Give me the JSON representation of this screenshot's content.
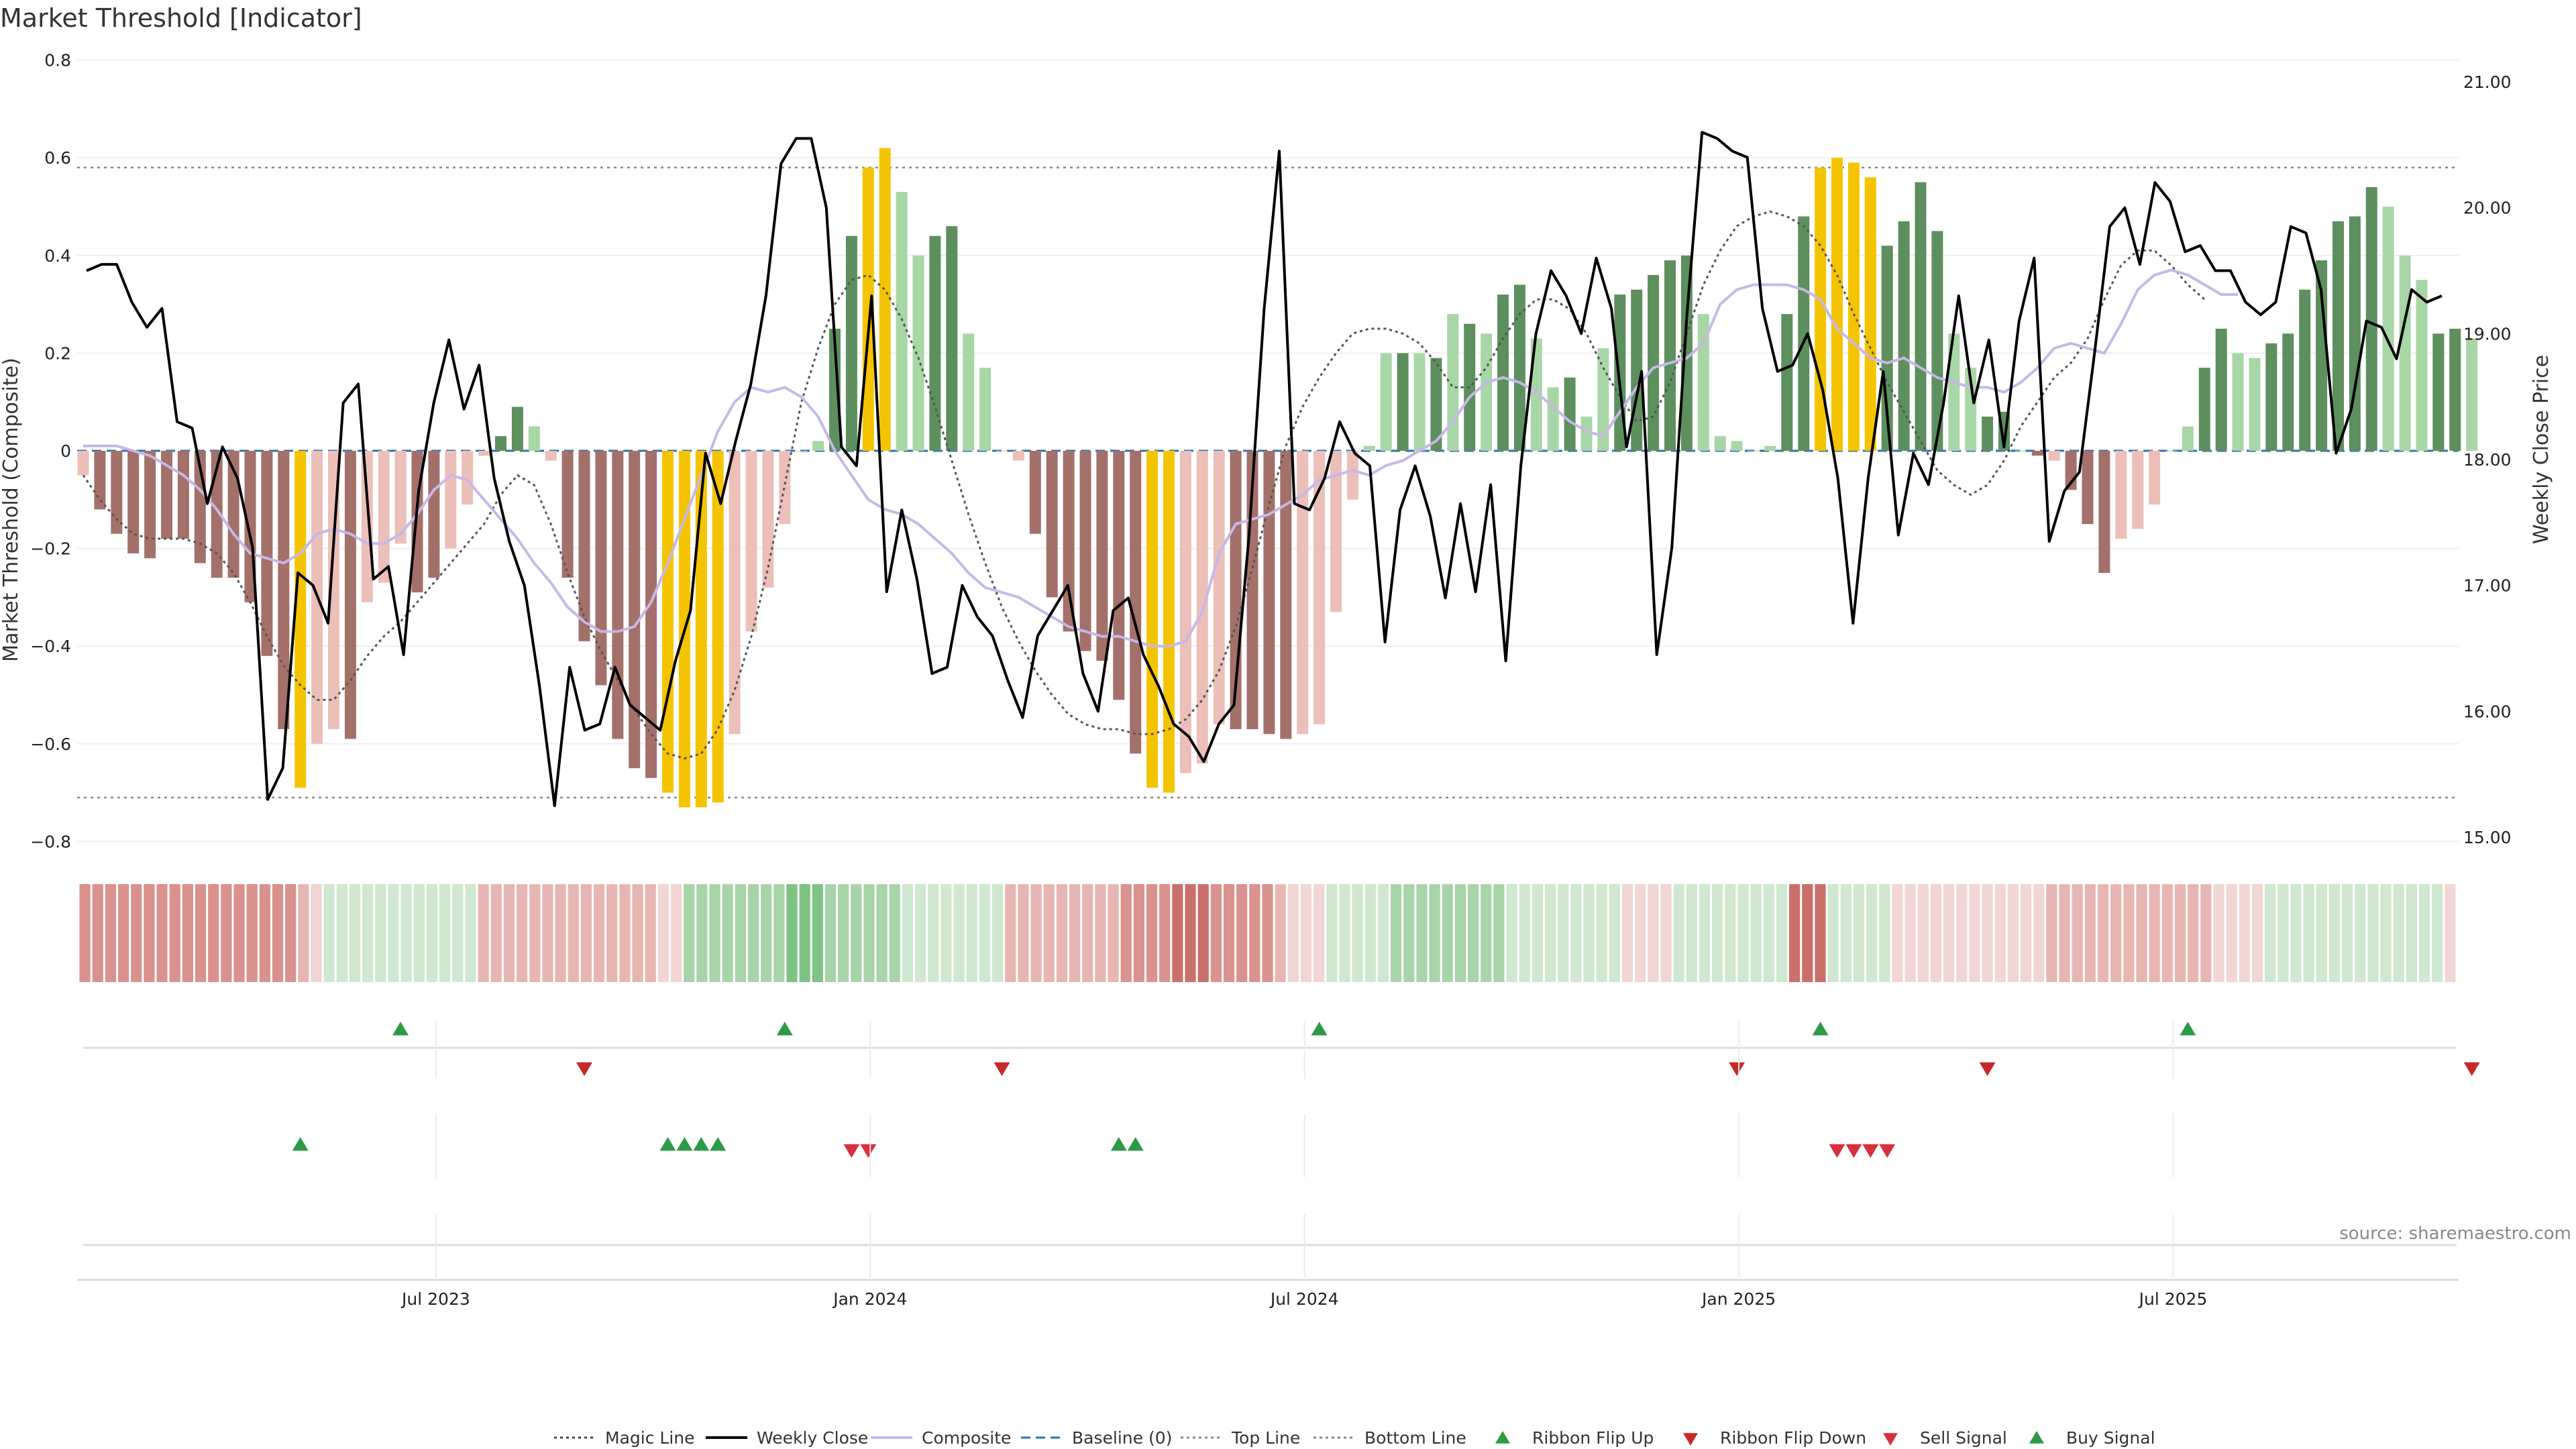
{
  "title": "Market Threshold [Indicator]",
  "source_text": "source: sharemaestro.com",
  "colors": {
    "bar_up_strong": "#5e8f5e",
    "bar_up_light": "#a9d6a6",
    "bar_down_strong": "#a4706a",
    "bar_down_light": "#ecbfb9",
    "bar_extreme": "#f5c400",
    "weekly_close": "#000000",
    "composite": "#c6b8e6",
    "magic": "#555555",
    "baseline": "#2f6fb1",
    "ribbon_green": "#3fa34d",
    "ribbon_red": "#d24a4a",
    "buy": "#2e9a47",
    "sell": "#d63040"
  },
  "legend": [
    {
      "label": "Magic Line",
      "kind": "dotted",
      "color": "#444444"
    },
    {
      "label": "Weekly Close",
      "kind": "solid",
      "color": "#000000"
    },
    {
      "label": "Composite",
      "kind": "solid",
      "color": "#c6b8e6"
    },
    {
      "label": "Baseline (0)",
      "kind": "dashed",
      "color": "#2f6fb1"
    },
    {
      "label": "Top Line",
      "kind": "dotted",
      "color": "#888888"
    },
    {
      "label": "Bottom Line",
      "kind": "dotted",
      "color": "#888888"
    },
    {
      "label": "Ribbon Flip Up",
      "kind": "up",
      "color": "#2e9a47"
    },
    {
      "label": "Ribbon Flip Down",
      "kind": "down",
      "color": "#c62828"
    },
    {
      "label": "Sell Signal",
      "kind": "down",
      "color": "#d63040"
    },
    {
      "label": "Buy Signal",
      "kind": "up",
      "color": "#2e9a47"
    }
  ],
  "chart_data": {
    "type": "bar",
    "title": "Market Threshold [Indicator]",
    "ylabel_left": "Market Threshold (Composite)",
    "ylabel_right": "Weekly Close Price",
    "ylim_left": [
      -0.8,
      0.8
    ],
    "ylim_right": [
      15.0,
      21.0
    ],
    "yticks_left": [
      "0.8",
      "0.6",
      "0.4",
      "0.2",
      "0",
      "−0.2",
      "−0.4",
      "−0.6",
      "−0.8"
    ],
    "yticks_right": [
      "21.00",
      "20.00",
      "19.00",
      "18.00",
      "17.00",
      "16.00",
      "15.00"
    ],
    "xtick_labels": [
      "Jul 2023",
      "Jan 2024",
      "Jul 2024",
      "Jan 2025",
      "Jul 2025"
    ],
    "xtick_index": [
      21,
      47,
      73,
      99,
      125
    ],
    "top_line": 0.58,
    "bottom_line": -0.71,
    "baseline": 0,
    "threshold_bars": [
      -0.05,
      -0.12,
      -0.17,
      -0.21,
      -0.22,
      -0.18,
      -0.18,
      -0.23,
      -0.26,
      -0.26,
      -0.31,
      -0.42,
      -0.57,
      -0.69,
      -0.6,
      -0.57,
      -0.59,
      -0.31,
      -0.27,
      -0.19,
      -0.29,
      -0.26,
      -0.2,
      -0.11,
      -0.01,
      0.03,
      0.09,
      0.05,
      -0.02,
      -0.26,
      -0.39,
      -0.48,
      -0.59,
      -0.65,
      -0.67,
      -0.7,
      -0.73,
      -0.73,
      -0.72,
      -0.58,
      -0.37,
      -0.28,
      -0.15,
      0.0,
      0.02,
      0.25,
      0.44,
      0.58,
      0.62,
      0.53,
      0.4,
      0.44,
      0.46,
      0.24,
      0.17,
      0.0,
      -0.02,
      -0.17,
      -0.3,
      -0.37,
      -0.41,
      -0.43,
      -0.51,
      -0.62,
      -0.69,
      -0.7,
      -0.66,
      -0.64,
      -0.56,
      -0.57,
      -0.57,
      -0.58,
      -0.59,
      -0.58,
      -0.56,
      -0.33,
      -0.1,
      0.01,
      0.2,
      0.2,
      0.2,
      0.19,
      0.28,
      0.26,
      0.24,
      0.32,
      0.34,
      0.23,
      0.13,
      0.15,
      0.07,
      0.21,
      0.32,
      0.33,
      0.36,
      0.39,
      0.4,
      0.28,
      0.03,
      0.02,
      0.0,
      0.01,
      0.28,
      0.48,
      0.58,
      0.6,
      0.59,
      0.56,
      0.42,
      0.47,
      0.55,
      0.45,
      0.24,
      0.17,
      0.07,
      0.08,
      0.0,
      -0.01,
      -0.02,
      -0.08,
      -0.15,
      -0.25,
      -0.18,
      -0.16,
      -0.11,
      0.0,
      0.05,
      0.17,
      0.25,
      0.2,
      0.19,
      0.22,
      0.24,
      0.33,
      0.39,
      0.47,
      0.48,
      0.54,
      0.5,
      0.4,
      0.35,
      0.24,
      0.25,
      0.23
    ],
    "bar_style": [
      1,
      2,
      2,
      2,
      2,
      2,
      2,
      2,
      2,
      2,
      2,
      2,
      2,
      5,
      1,
      1,
      2,
      1,
      1,
      1,
      2,
      2,
      1,
      1,
      1,
      4,
      4,
      3,
      1,
      2,
      2,
      2,
      2,
      2,
      2,
      5,
      5,
      5,
      5,
      1,
      1,
      1,
      1,
      1,
      3,
      4,
      4,
      5,
      5,
      3,
      3,
      4,
      4,
      3,
      3,
      1,
      1,
      2,
      2,
      2,
      2,
      2,
      2,
      2,
      5,
      5,
      1,
      1,
      1,
      2,
      2,
      2,
      2,
      1,
      1,
      1,
      1,
      3,
      3,
      4,
      3,
      4,
      3,
      4,
      3,
      4,
      4,
      3,
      3,
      4,
      3,
      3,
      4,
      4,
      4,
      4,
      4,
      3,
      3,
      3,
      3,
      3,
      4,
      4,
      5,
      5,
      5,
      5,
      4,
      4,
      4,
      4,
      3,
      3,
      4,
      4,
      3,
      2,
      1,
      2,
      2,
      2,
      1,
      1,
      1,
      3,
      3,
      4,
      4,
      3,
      3,
      4,
      4,
      4,
      4,
      4,
      4,
      4,
      3,
      3,
      3,
      4,
      4,
      3
    ],
    "weekly_close": [
      19.5,
      19.55,
      19.55,
      19.25,
      19.05,
      19.2,
      18.3,
      18.25,
      17.65,
      18.1,
      17.85,
      17.3,
      15.3,
      15.55,
      17.1,
      17.0,
      16.7,
      18.45,
      18.6,
      17.05,
      17.15,
      16.45,
      17.75,
      18.45,
      18.95,
      18.4,
      18.75,
      17.85,
      17.35,
      17.0,
      16.2,
      15.25,
      16.35,
      15.85,
      15.9,
      16.35,
      16.05,
      15.95,
      15.85,
      16.4,
      16.8,
      18.05,
      17.65,
      18.15,
      18.6,
      19.3,
      20.35,
      20.55,
      20.55,
      20.0,
      18.1,
      17.95,
      19.3,
      16.95,
      17.6,
      17.05,
      16.3,
      16.35,
      17.0,
      16.75,
      16.6,
      16.25,
      15.95,
      16.6,
      16.8,
      17.0,
      16.3,
      16.0,
      16.8,
      16.9,
      16.45,
      16.2,
      15.9,
      15.8,
      15.6,
      15.9,
      16.05,
      17.4,
      19.2,
      20.45,
      17.65,
      17.6,
      17.85,
      18.3,
      18.05,
      17.95,
      16.55,
      17.6,
      17.95,
      17.55,
      16.9,
      17.65,
      16.95,
      17.8,
      16.4,
      17.95,
      19.0,
      19.5,
      19.3,
      19.0,
      19.6,
      19.2,
      18.1,
      18.7,
      16.45,
      17.3,
      19.15,
      20.6,
      20.55,
      20.45,
      20.4,
      19.2,
      18.7,
      18.75,
      19.0,
      18.55,
      17.85,
      16.7,
      17.85,
      18.7,
      17.4,
      18.05,
      17.8,
      18.45,
      19.3,
      18.45,
      18.95,
      18.1,
      19.1,
      19.6,
      17.35,
      17.75,
      17.9,
      18.85,
      19.85,
      20.0,
      19.55,
      20.2,
      20.05,
      19.65,
      19.7,
      19.5,
      19.5,
      19.25,
      19.15,
      19.25,
      19.85,
      19.8,
      19.35,
      18.05,
      18.4,
      19.1,
      19.05,
      18.8,
      19.35,
      19.25,
      19.3
    ],
    "composite": [
      0.01,
      0.01,
      0.01,
      0.0,
      -0.01,
      -0.03,
      -0.05,
      -0.08,
      -0.12,
      -0.17,
      -0.21,
      -0.22,
      -0.23,
      -0.21,
      -0.17,
      -0.16,
      -0.17,
      -0.19,
      -0.19,
      -0.17,
      -0.13,
      -0.08,
      -0.05,
      -0.06,
      -0.1,
      -0.14,
      -0.18,
      -0.23,
      -0.27,
      -0.32,
      -0.35,
      -0.37,
      -0.37,
      -0.36,
      -0.31,
      -0.23,
      -0.14,
      -0.05,
      0.04,
      0.1,
      0.13,
      0.12,
      0.13,
      0.11,
      0.07,
      0.0,
      -0.05,
      -0.1,
      -0.12,
      -0.13,
      -0.15,
      -0.18,
      -0.21,
      -0.25,
      -0.28,
      -0.29,
      -0.3,
      -0.32,
      -0.34,
      -0.36,
      -0.37,
      -0.38,
      -0.38,
      -0.39,
      -0.4,
      -0.4,
      -0.39,
      -0.33,
      -0.21,
      -0.15,
      -0.14,
      -0.13,
      -0.11,
      -0.09,
      -0.06,
      -0.05,
      -0.04,
      -0.05,
      -0.03,
      -0.02,
      0.0,
      0.02,
      0.06,
      0.11,
      0.14,
      0.15,
      0.14,
      0.12,
      0.09,
      0.06,
      0.04,
      0.03,
      0.08,
      0.13,
      0.17,
      0.18,
      0.19,
      0.22,
      0.3,
      0.33,
      0.34,
      0.34,
      0.34,
      0.33,
      0.31,
      0.25,
      0.22,
      0.19,
      0.18,
      0.19,
      0.17,
      0.15,
      0.14,
      0.13,
      0.13,
      0.12,
      0.14,
      0.17,
      0.21,
      0.22,
      0.21,
      0.2,
      0.26,
      0.33,
      0.36,
      0.37,
      0.36,
      0.34,
      0.32,
      0.32
    ],
    "magic": [
      -0.05,
      -0.1,
      -0.14,
      -0.17,
      -0.18,
      -0.18,
      -0.18,
      -0.19,
      -0.21,
      -0.25,
      -0.31,
      -0.38,
      -0.44,
      -0.48,
      -0.51,
      -0.51,
      -0.47,
      -0.42,
      -0.38,
      -0.35,
      -0.31,
      -0.27,
      -0.23,
      -0.19,
      -0.15,
      -0.09,
      -0.05,
      -0.07,
      -0.15,
      -0.25,
      -0.34,
      -0.41,
      -0.47,
      -0.53,
      -0.58,
      -0.62,
      -0.63,
      -0.62,
      -0.57,
      -0.49,
      -0.38,
      -0.24,
      -0.07,
      0.1,
      0.21,
      0.3,
      0.35,
      0.36,
      0.33,
      0.27,
      0.19,
      0.09,
      -0.02,
      -0.13,
      -0.23,
      -0.32,
      -0.39,
      -0.45,
      -0.5,
      -0.54,
      -0.56,
      -0.57,
      -0.57,
      -0.58,
      -0.58,
      -0.57,
      -0.55,
      -0.51,
      -0.45,
      -0.36,
      -0.24,
      -0.11,
      0.01,
      0.09,
      0.15,
      0.2,
      0.24,
      0.25,
      0.25,
      0.24,
      0.22,
      0.18,
      0.13,
      0.13,
      0.17,
      0.23,
      0.28,
      0.31,
      0.31,
      0.29,
      0.24,
      0.17,
      0.11,
      0.06,
      0.07,
      0.14,
      0.24,
      0.34,
      0.41,
      0.46,
      0.48,
      0.49,
      0.48,
      0.46,
      0.42,
      0.36,
      0.28,
      0.21,
      0.14,
      0.08,
      0.02,
      -0.04,
      -0.07,
      -0.09,
      -0.07,
      -0.02,
      0.05,
      0.1,
      0.15,
      0.18,
      0.23,
      0.31,
      0.38,
      0.41,
      0.41,
      0.38,
      0.34,
      0.31
    ],
    "ribbon": [
      2,
      2,
      2,
      2,
      2,
      2,
      2,
      2,
      2,
      2,
      2,
      2,
      2,
      2,
      2,
      2,
      2,
      1,
      0,
      4,
      4,
      4,
      4,
      4,
      4,
      4,
      4,
      4,
      4,
      4,
      4,
      1,
      1,
      1,
      1,
      1,
      1,
      1,
      1,
      1,
      1,
      1,
      1,
      1,
      1,
      0,
      0,
      5,
      5,
      5,
      5,
      5,
      5,
      5,
      5,
      6,
      6,
      6,
      5,
      5,
      5,
      5,
      5,
      5,
      4,
      4,
      4,
      4,
      4,
      4,
      4,
      4,
      1,
      1,
      1,
      1,
      1,
      1,
      1,
      1,
      1,
      2,
      2,
      2,
      2,
      3,
      3,
      3,
      2,
      2,
      2,
      2,
      2,
      1,
      0,
      0,
      0,
      4,
      4,
      4,
      4,
      4,
      5,
      5,
      5,
      5,
      5,
      5,
      5,
      5,
      5,
      4,
      4,
      4,
      4,
      4,
      4,
      4,
      4,
      4,
      0,
      0,
      0,
      0,
      4,
      4,
      4,
      4,
      4,
      4,
      4,
      4,
      4,
      3,
      3,
      3,
      4,
      4,
      4,
      4,
      4,
      0,
      0,
      0,
      0,
      0,
      0,
      0,
      0,
      0,
      0,
      0,
      0,
      1,
      1,
      1,
      1,
      1,
      1,
      1,
      1,
      1,
      1,
      1,
      1,
      1,
      0,
      0,
      0,
      0,
      4,
      4,
      4,
      4,
      4,
      4,
      4,
      4,
      4,
      4,
      4,
      4,
      4,
      4,
      0
    ],
    "ribbon_flip_up_index": [
      19,
      42,
      74,
      104,
      126
    ],
    "ribbon_flip_down_index": [
      30,
      55,
      99,
      114,
      143
    ],
    "buy_signal_index": [
      13,
      35,
      36,
      37,
      38,
      62,
      63
    ],
    "sell_signal_index": [
      46,
      47,
      105,
      106,
      107,
      108
    ]
  }
}
